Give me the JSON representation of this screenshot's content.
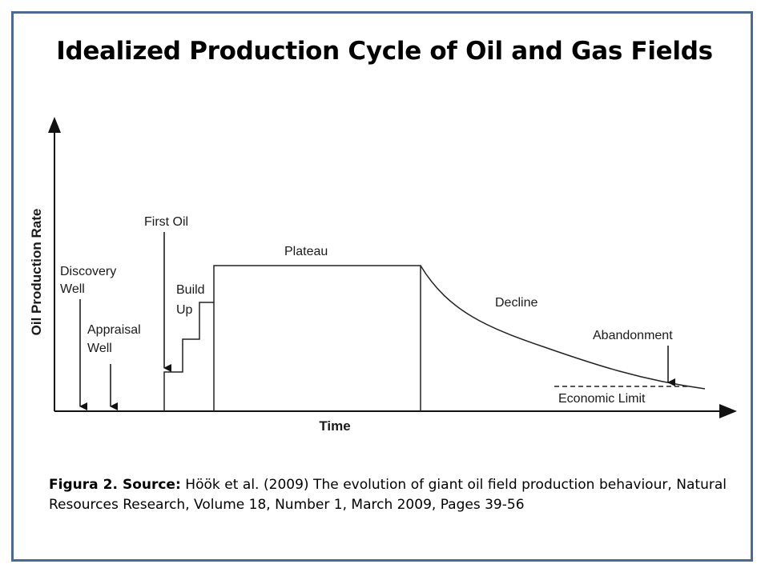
{
  "title": "Idealized Production Cycle of Oil and Gas Fields",
  "diagram": {
    "y_axis_label": "Oil Production Rate",
    "x_axis_label": "Time",
    "labels": {
      "discovery_well_1": "Discovery",
      "discovery_well_2": "Well",
      "appraisal_well_1": "Appraisal",
      "appraisal_well_2": "Well",
      "first_oil": "First Oil",
      "build_up_1": "Build",
      "build_up_2": "Up",
      "plateau": "Plateau",
      "decline": "Decline",
      "abandonment": "Abandonment",
      "economic_limit": "Economic Limit"
    }
  },
  "caption": {
    "lead": "Figura 2. Source:",
    "text": " Höök et al. (2009) The evolution of giant oil field production behaviour, Natural Resources Research, Volume 18, Number 1, March 2009, Pages 39-56"
  }
}
